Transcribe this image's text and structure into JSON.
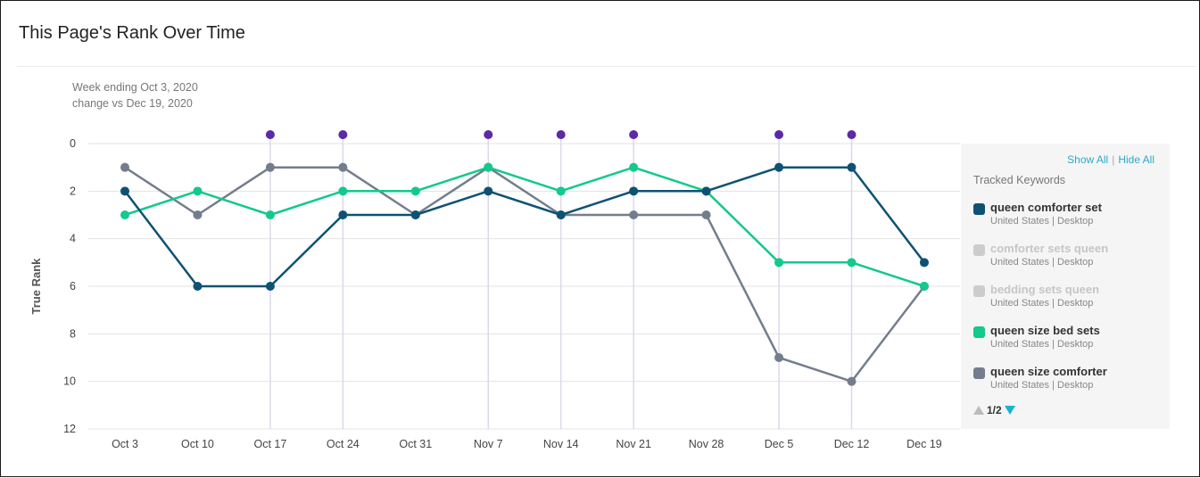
{
  "header": {
    "title": "This Page's Rank Over Time"
  },
  "info": {
    "week_label": "Week ending Oct 3, 2020",
    "change_label": "change vs Dec 19, 2020"
  },
  "legend": {
    "show_all": "Show All",
    "separator": "|",
    "hide_all": "Hide All",
    "heading": "Tracked Keywords",
    "page_indicator": "1/2",
    "items": [
      {
        "name": "queen comforter set",
        "meta": "United States | Desktop",
        "color": "#0e5273",
        "active": true
      },
      {
        "name": "comforter sets queen",
        "meta": "United States | Desktop",
        "color": "#cccccc",
        "active": false
      },
      {
        "name": "bedding sets queen",
        "meta": "United States | Desktop",
        "color": "#cccccc",
        "active": false
      },
      {
        "name": "queen size bed sets",
        "meta": "United States | Desktop",
        "color": "#13c98b",
        "active": true
      },
      {
        "name": "queen size comforter",
        "meta": "United States | Desktop",
        "color": "#737d8d",
        "active": true
      }
    ]
  },
  "chart_data": {
    "type": "line",
    "ylabel": "True Rank",
    "xlabel": "",
    "ylim": [
      0,
      12
    ],
    "y_inverted": true,
    "yticks": [
      0,
      2,
      4,
      6,
      8,
      10,
      12
    ],
    "grid": true,
    "legend_position": "right",
    "categories": [
      "Oct 3",
      "Oct 10",
      "Oct 17",
      "Oct 24",
      "Oct 31",
      "Nov 7",
      "Nov 14",
      "Nov 21",
      "Nov 28",
      "Dec 5",
      "Dec 12",
      "Dec 19"
    ],
    "event_markers": {
      "categories": [
        "Oct 17",
        "Oct 24",
        "Nov 7",
        "Nov 14",
        "Nov 21",
        "Dec 5",
        "Dec 12"
      ],
      "color": "#5b2aa5",
      "line_color": "#dcd8ec"
    },
    "series": [
      {
        "name": "queen size comforter",
        "color": "#737d8d",
        "values": [
          1,
          3,
          1,
          1,
          3,
          1,
          3,
          3,
          3,
          9,
          10,
          6
        ]
      },
      {
        "name": "queen size bed sets",
        "color": "#13c98b",
        "values": [
          3,
          2,
          3,
          2,
          2,
          1,
          2,
          1,
          2,
          5,
          5,
          6
        ]
      },
      {
        "name": "queen comforter set",
        "color": "#0e5273",
        "values": [
          2,
          6,
          6,
          3,
          3,
          2,
          3,
          2,
          2,
          1,
          1,
          5
        ]
      }
    ]
  }
}
